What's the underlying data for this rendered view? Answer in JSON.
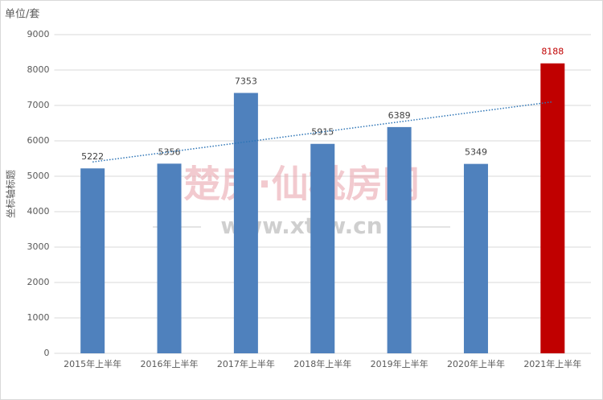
{
  "chart_data": {
    "type": "bar",
    "unit_label": "单位/套",
    "y_axis_label": "坐标轴标题",
    "watermark": "楚房·仙桃房网",
    "watermark_url": "www.xtfw.cn",
    "categories": [
      "2015年上半年",
      "2016年上半年",
      "2017年上半年",
      "2018年上半年",
      "2019年上半年",
      "2020年上半年",
      "2021年上半年"
    ],
    "values": [
      5222,
      5356,
      7353,
      5915,
      6389,
      5349,
      8188
    ],
    "colors": [
      "#4f81bd",
      "#4f81bd",
      "#4f81bd",
      "#4f81bd",
      "#4f81bd",
      "#4f81bd",
      "#c00000"
    ],
    "value_label_colors": [
      "#404040",
      "#404040",
      "#404040",
      "#404040",
      "#404040",
      "#404040",
      "#c00000"
    ],
    "trendline": true,
    "trendline_color": "#2e75b6",
    "ylim": [
      0,
      9000
    ],
    "yticks": [
      0,
      1000,
      2000,
      3000,
      4000,
      5000,
      6000,
      7000,
      8000,
      9000
    ],
    "grid": true
  }
}
